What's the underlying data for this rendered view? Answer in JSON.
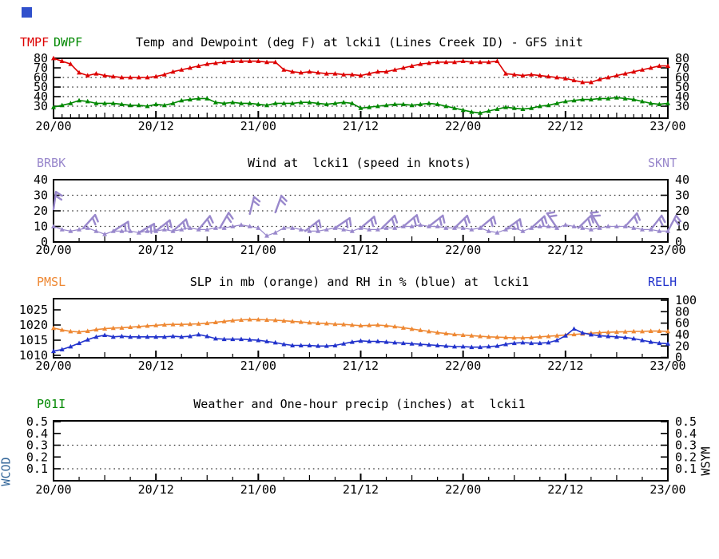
{
  "meta": {
    "background": "#ffffff",
    "logo_color": "#3050cc",
    "station": "lcki1",
    "station_name": "Lines Creek ID",
    "model": "GFS init"
  },
  "x_axis": {
    "tick_labels": [
      "20/00",
      "20/12",
      "21/00",
      "21/12",
      "22/00",
      "22/12",
      "23/00"
    ],
    "tick_hours": [
      0,
      12,
      24,
      36,
      48,
      60,
      72
    ],
    "total_hours": 72
  },
  "chart_data": [
    {
      "type": "line",
      "title": "Temp and Dewpoint (deg F) at lcki1 (Lines Creek ID) - GFS init",
      "legend": [
        {
          "label": "TMPF",
          "color": "#dd0000"
        },
        {
          "label": "DWPF",
          "color": "#008800"
        }
      ],
      "y_ticks": [
        80,
        70,
        60,
        50,
        40,
        30
      ],
      "grid_at": [
        60,
        50,
        40,
        30
      ],
      "ylim": [
        17.5,
        80
      ],
      "x": "hourly from 20/00 to 23/00",
      "series": [
        {
          "name": "TMPF",
          "color": "#dd0000",
          "values": [
            80,
            77,
            74,
            65,
            62,
            64,
            62,
            61,
            60,
            60,
            60,
            60,
            61,
            63,
            66,
            68,
            70,
            72,
            74,
            75,
            76,
            77,
            77,
            77,
            77,
            76,
            76,
            68,
            66,
            65,
            66,
            65,
            64,
            64,
            63,
            63,
            62,
            64,
            66,
            66,
            68,
            70,
            72,
            74,
            75,
            76,
            76,
            76,
            77,
            76,
            76,
            76,
            77,
            64,
            63,
            62,
            63,
            62,
            61,
            60,
            59,
            57,
            55,
            55,
            58,
            60,
            62,
            64,
            66,
            68,
            70,
            72,
            72
          ]
        },
        {
          "name": "DWPF",
          "color": "#008800",
          "values": [
            29,
            31,
            33,
            36,
            35,
            33,
            33,
            33,
            32,
            31,
            31,
            30,
            32,
            31,
            33,
            36,
            37,
            38,
            38,
            34,
            33,
            34,
            33,
            33,
            32,
            31,
            33,
            33,
            33,
            34,
            34,
            33,
            32,
            33,
            34,
            33,
            28,
            29,
            30,
            31,
            32,
            32,
            31,
            32,
            33,
            32,
            30,
            28,
            26,
            24,
            23,
            25,
            27,
            29,
            28,
            27,
            28,
            30,
            31,
            33,
            35,
            36,
            37,
            37,
            38,
            38,
            39,
            38,
            37,
            35,
            33,
            32,
            33
          ]
        }
      ]
    },
    {
      "type": "line",
      "title": "Wind at  lcki1 (speed in knots)",
      "legend_left": {
        "label": "BRBK",
        "color": "#9988cc"
      },
      "legend_right": {
        "label": "SKNT",
        "color": "#9988cc"
      },
      "y_ticks": [
        40,
        30,
        20,
        10,
        0
      ],
      "grid_at": [
        30,
        20,
        10
      ],
      "ylim": [
        0,
        40
      ],
      "series": [
        {
          "name": "SKNT",
          "color": "#9988cc",
          "values": [
            10,
            8,
            7,
            8,
            9,
            7,
            5,
            7,
            7,
            7,
            6,
            7,
            7,
            8,
            7,
            8,
            9,
            8,
            8,
            9,
            9,
            10,
            11,
            10,
            9,
            4,
            6,
            9,
            9,
            8,
            7,
            7,
            8,
            9,
            8,
            7,
            9,
            8,
            8,
            9,
            9,
            10,
            10,
            11,
            10,
            10,
            9,
            9,
            9,
            8,
            9,
            7,
            6,
            8,
            9,
            7,
            9,
            10,
            10,
            9,
            11,
            10,
            9,
            8,
            9,
            10,
            10,
            10,
            9,
            8,
            8,
            7,
            7
          ]
        }
      ],
      "barbs": {
        "color": "#9988cc",
        "items": [
          {
            "h": 0,
            "dir": 8,
            "base": 21
          },
          {
            "h": 3.5,
            "dir": 42
          },
          {
            "h": 7,
            "dir": 58
          },
          {
            "h": 10,
            "dir": 60
          },
          {
            "h": 12,
            "dir": 52
          },
          {
            "h": 14,
            "dir": 48
          },
          {
            "h": 17,
            "dir": 40
          },
          {
            "h": 19.5,
            "dir": 30
          },
          {
            "h": 23,
            "dir": 14,
            "base": 18
          },
          {
            "h": 26,
            "dir": 20,
            "base": 19
          },
          {
            "h": 29.5,
            "dir": 52
          },
          {
            "h": 33,
            "dir": 56
          },
          {
            "h": 36,
            "dir": 50
          },
          {
            "h": 38.5,
            "dir": 46
          },
          {
            "h": 41,
            "dir": 50
          },
          {
            "h": 44,
            "dir": 52
          },
          {
            "h": 47,
            "dir": 46
          },
          {
            "h": 50,
            "dir": 50
          },
          {
            "h": 53,
            "dir": 54
          },
          {
            "h": 56,
            "dir": 48
          },
          {
            "h": 59,
            "dir": -34
          },
          {
            "h": 61.5,
            "dir": 46
          },
          {
            "h": 64,
            "dir": -30
          },
          {
            "h": 67,
            "dir": 42
          },
          {
            "h": 70,
            "dir": 38
          },
          {
            "h": 72,
            "dir": 28
          }
        ]
      }
    },
    {
      "type": "line",
      "title": "SLP in mb (orange) and RH in % (blue) at  lcki1",
      "legend_left": {
        "label": "PMSL",
        "color": "#ee8833"
      },
      "legend_right": {
        "label": "RELH",
        "color": "#2233cc"
      },
      "left_ticks": [
        1025,
        1020,
        1015,
        1010
      ],
      "right_ticks": [
        100,
        80,
        60,
        40,
        20,
        0
      ],
      "left_ylim": [
        1009,
        1029
      ],
      "right_ylim": [
        0,
        103
      ],
      "grid_at": [],
      "series": [
        {
          "name": "PMSL",
          "axis": "left",
          "color": "#ee8833",
          "values": [
            1019,
            1018.4,
            1017.9,
            1017.7,
            1018,
            1018.5,
            1018.8,
            1019,
            1019.1,
            1019.3,
            1019.5,
            1019.7,
            1019.9,
            1020.1,
            1020.2,
            1020.2,
            1020.3,
            1020.4,
            1020.6,
            1020.9,
            1021.2,
            1021.5,
            1021.7,
            1021.8,
            1021.8,
            1021.7,
            1021.6,
            1021.4,
            1021.2,
            1021,
            1020.8,
            1020.6,
            1020.5,
            1020.3,
            1020.2,
            1020,
            1019.8,
            1019.9,
            1020,
            1019.8,
            1019.5,
            1019.1,
            1018.7,
            1018.3,
            1017.9,
            1017.5,
            1017.2,
            1016.9,
            1016.7,
            1016.5,
            1016.3,
            1016.1,
            1016,
            1015.9,
            1015.8,
            1015.8,
            1015.9,
            1016.1,
            1016.3,
            1016.5,
            1016.7,
            1016.9,
            1017.1,
            1017.3,
            1017.5,
            1017.6,
            1017.7,
            1017.8,
            1017.9,
            1017.9,
            1018,
            1018,
            1017.9
          ]
        },
        {
          "name": "RELH",
          "axis": "right",
          "color": "#2233cc",
          "values": [
            11,
            14,
            19,
            25,
            31,
            36,
            39,
            36,
            37,
            36,
            36,
            36,
            36,
            36,
            37,
            36,
            37,
            40,
            37,
            33,
            32,
            32,
            32,
            31,
            30,
            28,
            26,
            23,
            21,
            21,
            21,
            20,
            20,
            21,
            24,
            27,
            29,
            28,
            28,
            27,
            26,
            25,
            24,
            23,
            22,
            21,
            20,
            19,
            19,
            18,
            18,
            19,
            20,
            23,
            25,
            26,
            25,
            25,
            26,
            30,
            38,
            50,
            43,
            40,
            38,
            37,
            36,
            35,
            33,
            30,
            27,
            25,
            24
          ]
        }
      ]
    },
    {
      "type": "line",
      "title": "Weather and One-hour precip (inches) at  lcki1",
      "legend_left": {
        "label": "P01I",
        "color": "#008800"
      },
      "side_left": {
        "label": "WCOD",
        "color": "#336699"
      },
      "side_right": {
        "label": "WSYM",
        "color": "#000000"
      },
      "y_ticks": [
        0.5,
        0.4,
        0.3,
        0.2,
        0.1
      ],
      "grid_at": [
        0.3,
        0.1
      ],
      "ylim": [
        0,
        0.51
      ],
      "series": []
    }
  ]
}
